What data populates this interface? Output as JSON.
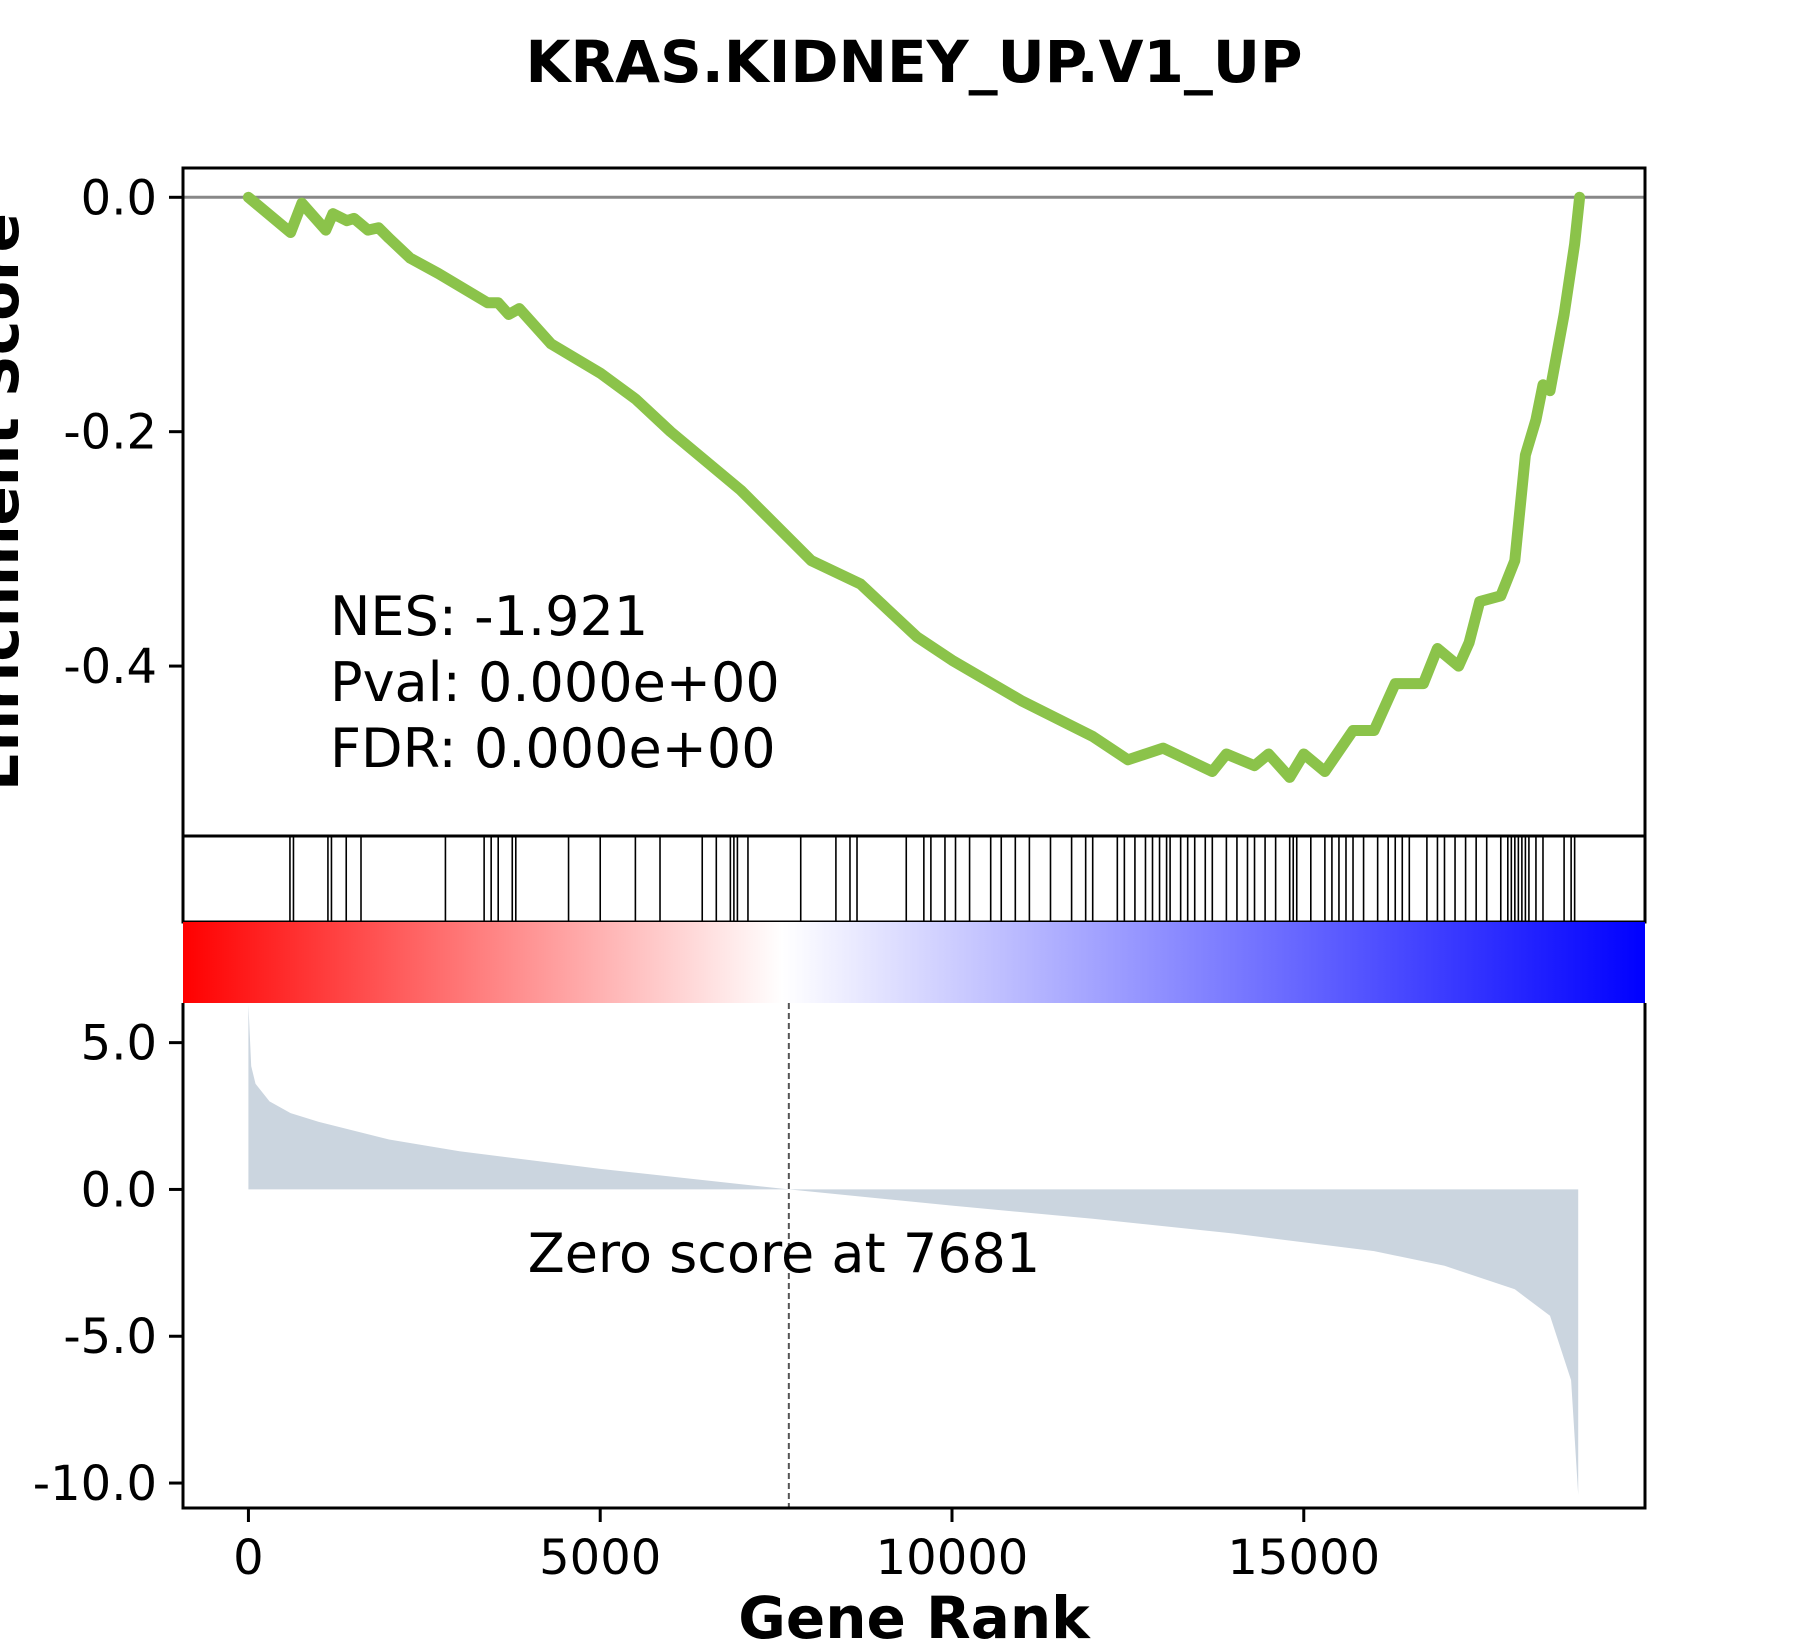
{
  "chart_data": {
    "type": "line",
    "title": "KRAS.KIDNEY_UP.V1_UP",
    "xlabel": "Gene Rank",
    "ylabel_top": "Enrichment Score",
    "xlim": [
      -930,
      19850
    ],
    "x_ticks": [
      0,
      5000,
      10000,
      15000
    ],
    "x_tick_labels": [
      "0",
      "5000",
      "10000",
      "15000"
    ],
    "enrichment": {
      "ylim": [
        -0.545,
        0.025
      ],
      "y_ticks": [
        0.0,
        -0.2,
        -0.4
      ],
      "y_tick_labels": [
        "0.0",
        "-0.2",
        "-0.4"
      ],
      "baseline": 0.0,
      "color": "#8bc34a",
      "points": [
        [
          0,
          0.0
        ],
        [
          600,
          -0.03
        ],
        [
          760,
          -0.005
        ],
        [
          1100,
          -0.028
        ],
        [
          1200,
          -0.014
        ],
        [
          1400,
          -0.02
        ],
        [
          1500,
          -0.018
        ],
        [
          1700,
          -0.028
        ],
        [
          1850,
          -0.026
        ],
        [
          2000,
          -0.035
        ],
        [
          2300,
          -0.052
        ],
        [
          2700,
          -0.065
        ],
        [
          3400,
          -0.09
        ],
        [
          3550,
          -0.09
        ],
        [
          3700,
          -0.1
        ],
        [
          3850,
          -0.095
        ],
        [
          4300,
          -0.125
        ],
        [
          5000,
          -0.15
        ],
        [
          5500,
          -0.172
        ],
        [
          6000,
          -0.2
        ],
        [
          7000,
          -0.25
        ],
        [
          8000,
          -0.31
        ],
        [
          8700,
          -0.33
        ],
        [
          9500,
          -0.375
        ],
        [
          10000,
          -0.395
        ],
        [
          11000,
          -0.43
        ],
        [
          12000,
          -0.46
        ],
        [
          12500,
          -0.48
        ],
        [
          13000,
          -0.47
        ],
        [
          13700,
          -0.49
        ],
        [
          13900,
          -0.475
        ],
        [
          14300,
          -0.485
        ],
        [
          14500,
          -0.475
        ],
        [
          14800,
          -0.495
        ],
        [
          15000,
          -0.475
        ],
        [
          15300,
          -0.49
        ],
        [
          15700,
          -0.455
        ],
        [
          16000,
          -0.455
        ],
        [
          16300,
          -0.415
        ],
        [
          16700,
          -0.415
        ],
        [
          16900,
          -0.385
        ],
        [
          17200,
          -0.4
        ],
        [
          17350,
          -0.38
        ],
        [
          17500,
          -0.345
        ],
        [
          17800,
          -0.34
        ],
        [
          18000,
          -0.31
        ],
        [
          18150,
          -0.22
        ],
        [
          18300,
          -0.19
        ],
        [
          18400,
          -0.16
        ],
        [
          18500,
          -0.165
        ],
        [
          18700,
          -0.1
        ],
        [
          18850,
          -0.04
        ],
        [
          18920,
          0.0
        ]
      ]
    },
    "hits": [
      590,
      640,
      1130,
      1180,
      1390,
      1600,
      2800,
      3350,
      3450,
      3550,
      3750,
      3800,
      4550,
      5000,
      5500,
      5850,
      6450,
      6650,
      6850,
      6900,
      6950,
      7100,
      7850,
      8350,
      8550,
      8650,
      9350,
      9600,
      9700,
      9900,
      10050,
      10250,
      10550,
      10700,
      10900,
      11100,
      11400,
      11700,
      11900,
      12000,
      12350,
      12450,
      12600,
      12750,
      12850,
      12950,
      13050,
      13100,
      13250,
      13350,
      13450,
      13600,
      13700,
      13900,
      14050,
      14200,
      14300,
      14450,
      14600,
      14800,
      14850,
      14900,
      15100,
      15300,
      15400,
      15500,
      15600,
      15700,
      15850,
      16050,
      16200,
      16300,
      16400,
      16500,
      16750,
      16900,
      17000,
      17150,
      17300,
      17450,
      17600,
      17800,
      17900,
      17950,
      18000,
      18050,
      18100,
      18150,
      18200,
      18300,
      18400,
      18700,
      18800,
      18850
    ],
    "ranked_metric": {
      "ylim": [
        -10.85,
        6.35
      ],
      "y_ticks": [
        5.0,
        0.0,
        -5.0,
        -10.0
      ],
      "y_tick_labels": [
        "5.0",
        "0.0",
        "-5.0",
        "-10.0"
      ],
      "fill_color": "#cbd5df",
      "points": [
        [
          0,
          6.3
        ],
        [
          40,
          4.2
        ],
        [
          100,
          3.6
        ],
        [
          300,
          3.0
        ],
        [
          600,
          2.6
        ],
        [
          1000,
          2.3
        ],
        [
          2000,
          1.7
        ],
        [
          3000,
          1.3
        ],
        [
          5000,
          0.7
        ],
        [
          7681,
          0.0
        ],
        [
          10000,
          -0.55
        ],
        [
          12000,
          -1.0
        ],
        [
          14000,
          -1.5
        ],
        [
          16000,
          -2.1
        ],
        [
          17000,
          -2.6
        ],
        [
          18000,
          -3.4
        ],
        [
          18500,
          -4.3
        ],
        [
          18800,
          -6.5
        ],
        [
          18900,
          -10.4
        ]
      ]
    },
    "zero_score_x": 7681,
    "zero_score_label": "Zero score at 7681",
    "stats": {
      "nes": "NES: -1.921",
      "pval": "Pval: 0.000e+00",
      "fdr": "FDR: 0.000e+00"
    },
    "colorbar": {
      "from": "#ff0000",
      "mid": "#ffffff",
      "to": "#0000ff"
    }
  }
}
